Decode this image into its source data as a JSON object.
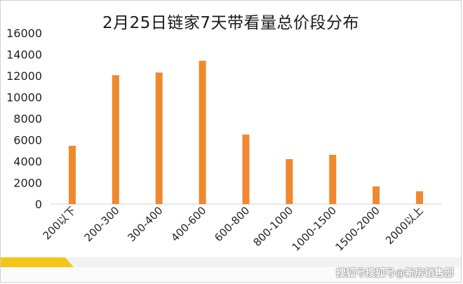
{
  "watermark": "搜狐号搜狐号@新房销售部",
  "chart_data": {
    "type": "bar",
    "title": "2月25日链家7天带看量总价段分布",
    "categories": [
      "200以下",
      "200-300",
      "300-400",
      "400-600",
      "600-800",
      "800-1000",
      "1000-1500",
      "1500-2000",
      "2000以上"
    ],
    "values": [
      5450,
      12050,
      12300,
      13400,
      6500,
      4200,
      4600,
      1650,
      1200
    ],
    "ylim": [
      0,
      16000
    ],
    "yticks": [
      0,
      2000,
      4000,
      6000,
      8000,
      10000,
      12000,
      14000,
      16000
    ],
    "bar_color": "#F0882E",
    "grid": false,
    "legend": "none"
  }
}
